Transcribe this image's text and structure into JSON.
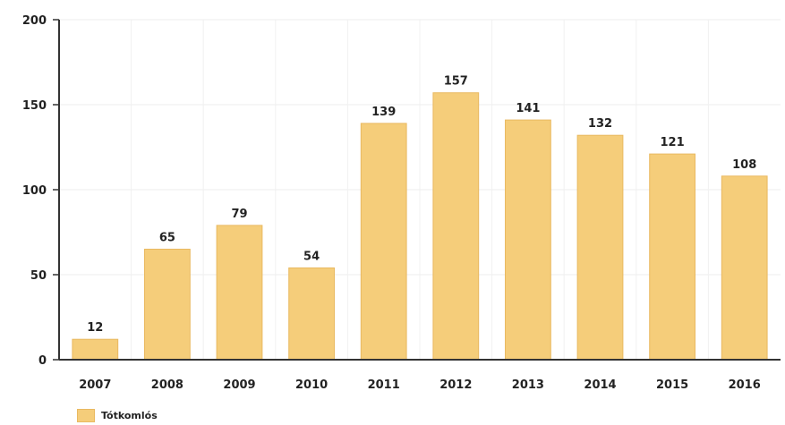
{
  "chart_data": {
    "type": "bar",
    "categories": [
      "2007",
      "2008",
      "2009",
      "2010",
      "2011",
      "2012",
      "2013",
      "2014",
      "2015",
      "2016"
    ],
    "series": [
      {
        "name": "Tótkomlós",
        "values": [
          12,
          65,
          79,
          54,
          139,
          157,
          141,
          132,
          121,
          108
        ]
      }
    ],
    "ylim": [
      0,
      200
    ],
    "yticks": [
      "0",
      "50",
      "100",
      "150",
      "200"
    ],
    "grid": true,
    "legend": "bottom-left",
    "bar_color": "#f5cd7a",
    "bar_edge_color": "#e9b961"
  }
}
